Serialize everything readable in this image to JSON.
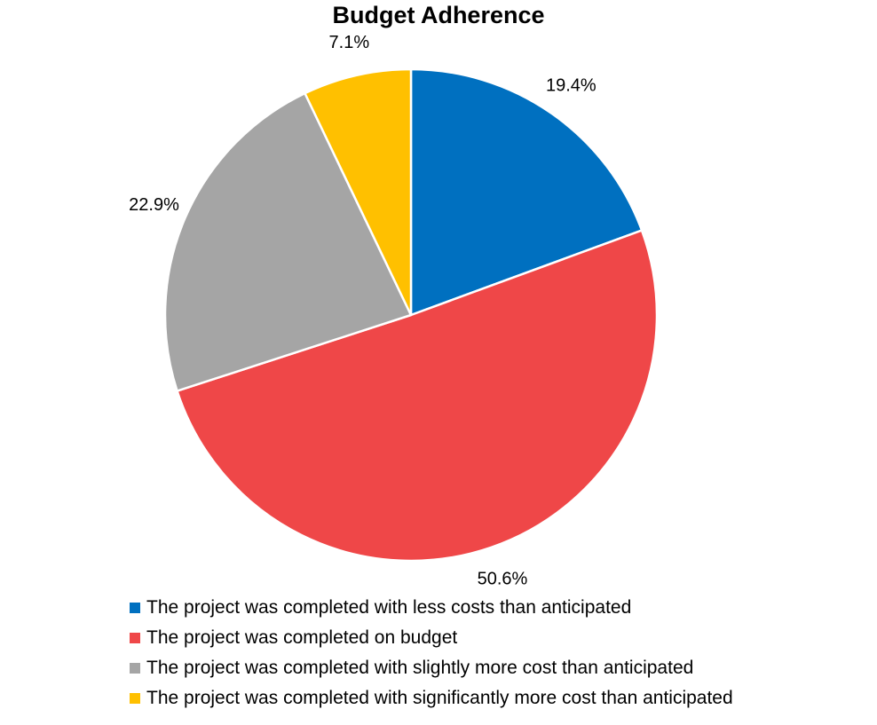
{
  "chart_data": {
    "type": "pie",
    "title": "Budget Adherence",
    "slices": [
      {
        "label": "The project was completed with less costs than anticipated",
        "value": 19.4,
        "value_label": "19.4%",
        "color": "#0070C0"
      },
      {
        "label": "The project was completed on budget",
        "value": 50.6,
        "value_label": "50.6%",
        "color": "#EF4748"
      },
      {
        "label": "The project was completed with slightly more cost than anticipated",
        "value": 22.9,
        "value_label": "22.9%",
        "color": "#A5A5A5"
      },
      {
        "label": "The project was completed with significantly more cost than anticipated",
        "value": 7.1,
        "value_label": "7.1%",
        "color": "#FFC000"
      }
    ],
    "start_angle": "12 o'clock",
    "direction": "clockwise",
    "legend_position": "bottom"
  }
}
